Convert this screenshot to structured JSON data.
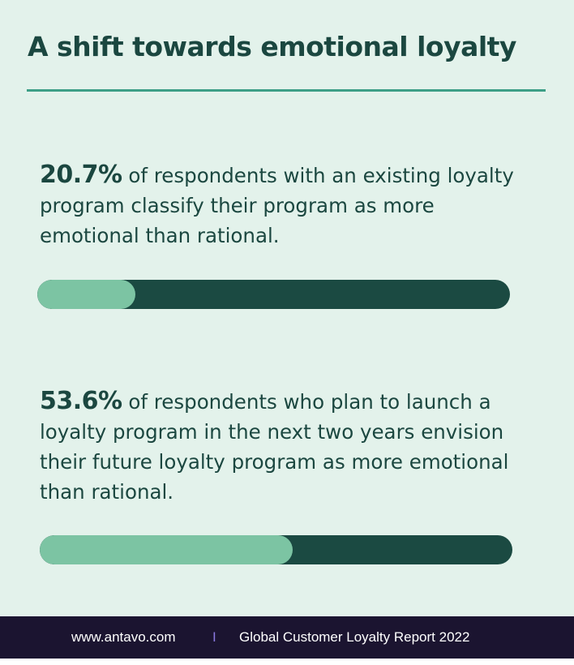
{
  "title": "A shift towards emotional loyalty",
  "colors": {
    "background": "#e3f2eb",
    "title_text": "#1b4740",
    "rule": "#3d9f87",
    "bar_track": "#1b4a42",
    "bar_fill": "#7cc4a3",
    "footer_background": "#1b1430",
    "separator": "#8a78e0"
  },
  "stats": [
    {
      "percent_label": "20.7%",
      "text": " of respondents with an existing loyalty program classify their program as more emotional than rational."
    },
    {
      "percent_label": "53.6%",
      "text": " of respondents who plan to launch a loyalty program in the next two years envision their future loyalty program as more emotional than rational."
    }
  ],
  "chart_data": {
    "type": "bar",
    "orientation": "horizontal",
    "values": [
      20.7,
      53.6
    ],
    "xlim": [
      0,
      100
    ],
    "grid": false
  },
  "footer": {
    "url": "www.antavo.com",
    "separator": "I",
    "report": "Global Customer Loyalty Report 2022"
  }
}
